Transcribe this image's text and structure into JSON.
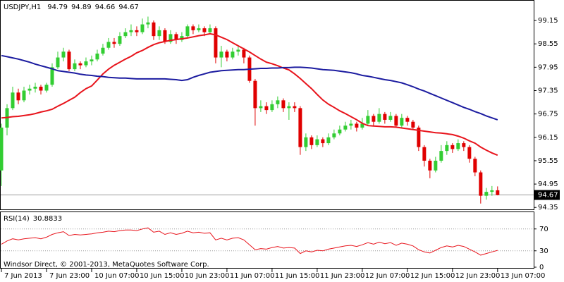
{
  "chart_data": [
    {
      "type": "candlestick",
      "title": "USDJPY,H1",
      "open": [
        95.3,
        96.4,
        96.9,
        97.3,
        97.1,
        97.35,
        97.4,
        97.45,
        97.35,
        97.5,
        97.95,
        98.2,
        98.35,
        97.9,
        98.05,
        98.0,
        98.1,
        98.15,
        98.3,
        98.45,
        98.6,
        98.55,
        98.75,
        98.85,
        98.9,
        98.85,
        99.05,
        99.1,
        98.75,
        98.9,
        98.6,
        98.8,
        98.65,
        98.75,
        99.0,
        98.9,
        98.95,
        98.85,
        98.95,
        98.2,
        98.35,
        98.2,
        98.35,
        98.4,
        98.2,
        97.6,
        96.9,
        96.95,
        96.85,
        97.0,
        97.1,
        96.9,
        96.95,
        96.9,
        95.9,
        96.15,
        95.95,
        96.1,
        96.0,
        96.15,
        96.25,
        96.35,
        96.45,
        96.5,
        96.4,
        96.5,
        96.7,
        96.55,
        96.75,
        96.6,
        96.7,
        96.45,
        96.65,
        96.55,
        96.4,
        95.9,
        95.55,
        95.3,
        95.55,
        95.8,
        95.95,
        95.85,
        96.0,
        95.9,
        95.6,
        95.25,
        94.65,
        94.75,
        94.79
      ],
      "high": [
        96.5,
        97.0,
        97.45,
        97.4,
        97.45,
        97.5,
        97.55,
        97.5,
        97.55,
        98.05,
        98.35,
        98.45,
        98.4,
        98.15,
        98.1,
        98.2,
        98.25,
        98.4,
        98.55,
        98.7,
        98.7,
        98.85,
        98.95,
        99.05,
        99.0,
        99.2,
        99.25,
        99.15,
        99.0,
        98.95,
        98.9,
        98.85,
        98.85,
        99.05,
        99.05,
        99.05,
        99.0,
        99.05,
        99.0,
        98.5,
        98.4,
        98.45,
        98.5,
        98.45,
        98.25,
        97.65,
        97.1,
        97.05,
        97.1,
        97.2,
        97.15,
        97.05,
        97.05,
        96.95,
        96.25,
        96.2,
        96.2,
        96.15,
        96.25,
        96.35,
        96.45,
        96.55,
        96.6,
        96.55,
        96.65,
        96.85,
        96.75,
        96.9,
        96.8,
        96.8,
        96.75,
        96.75,
        96.7,
        96.6,
        96.45,
        95.95,
        95.6,
        95.65,
        95.95,
        96.05,
        96.0,
        96.1,
        96.05,
        95.95,
        95.65,
        95.3,
        94.85,
        94.9,
        94.89
      ],
      "low": [
        94.9,
        96.2,
        96.85,
        97.0,
        97.05,
        97.25,
        97.3,
        97.25,
        97.3,
        97.45,
        97.9,
        98.1,
        97.85,
        97.85,
        97.9,
        97.95,
        98.0,
        98.1,
        98.25,
        98.4,
        98.45,
        98.5,
        98.7,
        98.75,
        98.75,
        98.8,
        98.95,
        98.65,
        98.65,
        98.55,
        98.55,
        98.55,
        98.6,
        98.7,
        98.8,
        98.85,
        98.75,
        98.8,
        98.05,
        97.95,
        98.1,
        98.15,
        98.25,
        98.05,
        97.55,
        96.45,
        96.8,
        96.75,
        96.8,
        96.9,
        96.8,
        96.6,
        96.8,
        95.7,
        95.8,
        95.85,
        95.9,
        95.9,
        95.95,
        96.1,
        96.2,
        96.3,
        96.35,
        96.3,
        96.35,
        96.45,
        96.45,
        96.5,
        96.5,
        96.55,
        96.4,
        96.4,
        96.45,
        96.35,
        95.8,
        95.4,
        95.1,
        95.25,
        95.5,
        95.7,
        95.75,
        95.8,
        95.8,
        95.5,
        95.15,
        94.45,
        94.55,
        94.65,
        94.66
      ],
      "close": [
        96.4,
        96.9,
        97.3,
        97.1,
        97.35,
        97.4,
        97.45,
        97.35,
        97.5,
        97.95,
        98.2,
        98.35,
        97.9,
        98.05,
        98.0,
        98.1,
        98.15,
        98.3,
        98.45,
        98.6,
        98.55,
        98.75,
        98.85,
        98.9,
        98.85,
        99.05,
        99.1,
        98.75,
        98.9,
        98.6,
        98.8,
        98.65,
        98.75,
        99.0,
        98.9,
        98.95,
        98.85,
        98.95,
        98.2,
        98.35,
        98.2,
        98.35,
        98.4,
        98.2,
        97.6,
        96.9,
        96.95,
        96.85,
        97.0,
        97.1,
        96.9,
        96.95,
        96.9,
        95.9,
        96.15,
        95.95,
        96.1,
        96.0,
        96.15,
        96.25,
        96.35,
        96.45,
        96.5,
        96.4,
        96.5,
        96.7,
        96.55,
        96.75,
        96.6,
        96.7,
        96.45,
        96.65,
        96.55,
        96.4,
        95.9,
        95.55,
        95.3,
        95.55,
        95.8,
        95.95,
        95.85,
        96.0,
        95.9,
        95.6,
        95.25,
        94.65,
        94.75,
        94.79,
        94.67
      ],
      "up_color": "#32cd32",
      "down_color": "#e00000",
      "series": [
        {
          "color": "#e8141c",
          "values": [
            96.65,
            96.66,
            96.68,
            96.69,
            96.71,
            96.73,
            96.76,
            96.8,
            96.83,
            96.87,
            96.95,
            97.02,
            97.1,
            97.18,
            97.3,
            97.4,
            97.47,
            97.62,
            97.78,
            97.9,
            98.0,
            98.08,
            98.16,
            98.23,
            98.32,
            98.38,
            98.46,
            98.53,
            98.58,
            98.61,
            98.64,
            98.66,
            98.68,
            98.7,
            98.73,
            98.76,
            98.78,
            98.81,
            98.78,
            98.72,
            98.66,
            98.58,
            98.5,
            98.42,
            98.34,
            98.25,
            98.16,
            98.08,
            98.04,
            97.99,
            97.93,
            97.88,
            97.78,
            97.66,
            97.53,
            97.4,
            97.25,
            97.11,
            97.0,
            96.92,
            96.83,
            96.76,
            96.68,
            96.6,
            96.51,
            96.45,
            96.44,
            96.43,
            96.42,
            96.42,
            96.41,
            96.39,
            96.37,
            96.35,
            96.33,
            96.31,
            96.29,
            96.27,
            96.26,
            96.24,
            96.22,
            96.18,
            96.13,
            96.06,
            96.0,
            95.9,
            95.82,
            95.75,
            95.69
          ]
        },
        {
          "color": "#1c1ca0",
          "values": [
            98.25,
            98.22,
            98.19,
            98.16,
            98.12,
            98.08,
            98.03,
            97.99,
            97.95,
            97.91,
            97.86,
            97.84,
            97.82,
            97.8,
            97.77,
            97.75,
            97.74,
            97.72,
            97.71,
            97.69,
            97.68,
            97.67,
            97.67,
            97.66,
            97.65,
            97.65,
            97.65,
            97.65,
            97.65,
            97.65,
            97.64,
            97.63,
            97.61,
            97.63,
            97.69,
            97.74,
            97.78,
            97.82,
            97.84,
            97.86,
            97.87,
            97.88,
            97.89,
            97.89,
            97.9,
            97.91,
            97.92,
            97.92,
            97.93,
            97.93,
            97.94,
            97.94,
            97.95,
            97.95,
            97.94,
            97.93,
            97.91,
            97.89,
            97.88,
            97.87,
            97.85,
            97.83,
            97.81,
            97.78,
            97.74,
            97.72,
            97.69,
            97.66,
            97.63,
            97.61,
            97.58,
            97.55,
            97.5,
            97.45,
            97.39,
            97.34,
            97.28,
            97.22,
            97.16,
            97.1,
            97.04,
            96.98,
            96.92,
            96.87,
            96.81,
            96.76,
            96.7,
            96.65,
            96.6
          ]
        }
      ],
      "xlim": [
        -0.25,
        94.4
      ],
      "ylim": [
        94.3,
        99.64
      ],
      "yticks": [
        99.15,
        98.55,
        97.95,
        97.35,
        96.75,
        96.15,
        95.55,
        94.95,
        94.35
      ],
      "xticks": [
        {
          "value": 0,
          "label": "7 Jun 2013"
        },
        {
          "value": 8,
          "label": "7 Jun 23:00"
        },
        {
          "value": 16,
          "label": "10 Jun 07:00"
        },
        {
          "value": 24,
          "label": "10 Jun 15:00"
        },
        {
          "value": 32,
          "label": "10 Jun 23:00"
        },
        {
          "value": 40,
          "label": "11 Jun 07:00"
        },
        {
          "value": 48,
          "label": "11 Jun 15:00"
        },
        {
          "value": 56,
          "label": "11 Jun 23:00"
        },
        {
          "value": 64,
          "label": "12 Jun 07:00"
        },
        {
          "value": 72,
          "label": "12 Jun 15:00"
        },
        {
          "value": 80,
          "label": "12 Jun 23:00"
        },
        {
          "value": 88,
          "label": "13 Jun 07:00"
        }
      ]
    },
    {
      "type": "line",
      "title": "RSI(14)",
      "color": "#e8141c",
      "values": [
        42,
        48,
        52,
        50,
        52,
        53,
        54,
        52,
        55,
        60,
        63,
        65,
        58,
        60,
        59,
        60,
        61,
        63,
        64,
        66,
        65,
        67,
        68,
        68,
        67,
        70,
        72,
        64,
        66,
        60,
        63,
        60,
        62,
        66,
        63,
        64,
        62,
        63,
        50,
        53,
        50,
        53,
        54,
        50,
        41,
        32,
        34,
        33,
        36,
        38,
        35,
        36,
        35,
        25,
        30,
        28,
        31,
        30,
        33,
        35,
        37,
        39,
        40,
        38,
        41,
        45,
        42,
        46,
        43,
        45,
        40,
        44,
        42,
        39,
        32,
        28,
        26,
        31,
        36,
        39,
        37,
        40,
        38,
        33,
        28,
        22,
        25,
        28,
        30.8833
      ],
      "ylim": [
        0,
        100
      ],
      "yticks": [
        70,
        30,
        0
      ],
      "grid": true,
      "footer": "Windsor Direct, © 2001-2013, MetaQuotes Software Corp."
    }
  ]
}
